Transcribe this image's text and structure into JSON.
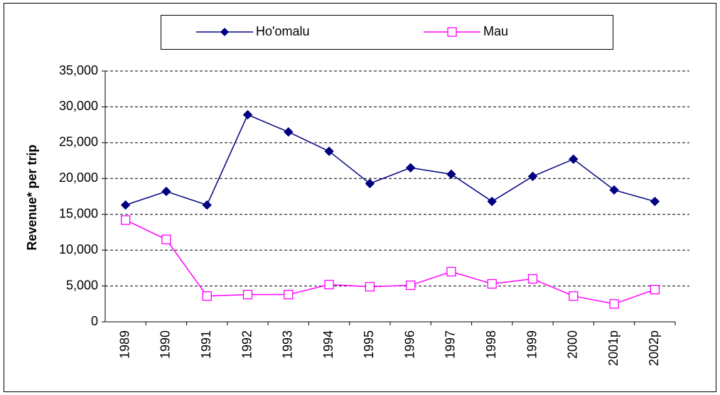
{
  "chart_data": {
    "type": "line",
    "y_label": "Revenue* per trip",
    "categories": [
      "1989",
      "1990",
      "1991",
      "1992",
      "1993",
      "1994",
      "1995",
      "1996",
      "1997",
      "1998",
      "1999",
      "2000",
      "2001p",
      "2002p"
    ],
    "series": [
      {
        "name": "Ho'omalu",
        "color": "#000080",
        "marker": "diamond",
        "values": [
          16300,
          18200,
          16300,
          28900,
          26500,
          23800,
          19300,
          21500,
          20600,
          16800,
          20300,
          22700,
          18400,
          16800
        ]
      },
      {
        "name": "Mau",
        "color": "#FF00FF",
        "marker": "square",
        "values": [
          14200,
          11500,
          3600,
          3800,
          3800,
          5200,
          4900,
          5100,
          7000,
          5300,
          6000,
          3600,
          2500,
          4500
        ]
      }
    ],
    "ylim": [
      0,
      35000
    ],
    "yticks": [
      0,
      {
        "value": 5000,
        "label": "5,000"
      },
      {
        "value": 10000,
        "label": "10,000"
      },
      {
        "value": 15000,
        "label": "15,000"
      },
      {
        "value": 20000,
        "label": "20,000"
      },
      {
        "value": 25000,
        "label": "25,000"
      },
      {
        "value": 30000,
        "label": "30,000"
      },
      {
        "value": 35000,
        "label": "35,000"
      }
    ],
    "grid": true,
    "legend": "top"
  }
}
